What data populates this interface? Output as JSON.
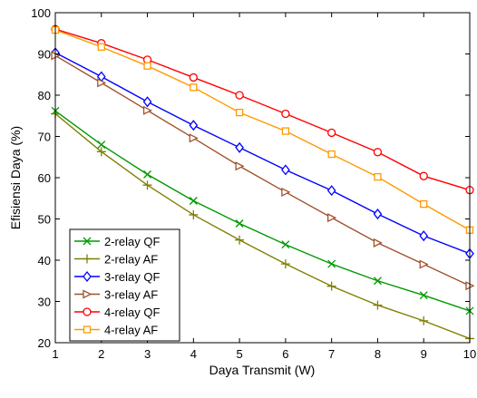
{
  "chart_data": {
    "type": "line",
    "title": "",
    "xlabel": "Daya Transmit (W)",
    "ylabel": "Efisiensi Daya (%)",
    "xlim": [
      1,
      10
    ],
    "ylim": [
      20,
      100
    ],
    "xticks": [
      1,
      2,
      3,
      4,
      5,
      6,
      7,
      8,
      9,
      10
    ],
    "yticks": [
      20,
      30,
      40,
      50,
      60,
      70,
      80,
      90,
      100
    ],
    "grid": false,
    "legend_position": "bottom-left",
    "x": [
      1,
      2,
      3,
      4,
      5,
      6,
      7,
      8,
      9,
      10
    ],
    "series": [
      {
        "name": "2-relay QF",
        "color": "#009900",
        "marker": "x",
        "values": [
          76.2,
          68.0,
          60.8,
          54.4,
          48.9,
          43.8,
          39.1,
          35.0,
          31.5,
          27.7
        ]
      },
      {
        "name": "2-relay AF",
        "color": "#808000",
        "marker": "plus",
        "values": [
          75.5,
          66.3,
          58.2,
          51.0,
          44.9,
          39.1,
          33.7,
          29.1,
          25.3,
          21.0
        ]
      },
      {
        "name": "3-relay QF",
        "color": "#0000ff",
        "marker": "diamond",
        "values": [
          90.3,
          84.5,
          78.4,
          72.7,
          67.3,
          61.9,
          56.9,
          51.2,
          45.9,
          41.6
        ]
      },
      {
        "name": "3-relay AF",
        "color": "#a0522d",
        "marker": "triangle-right",
        "values": [
          89.6,
          83.0,
          76.3,
          69.6,
          62.8,
          56.5,
          50.3,
          44.2,
          39.0,
          33.8
        ]
      },
      {
        "name": "4-relay QF",
        "color": "#ff0000",
        "marker": "circle",
        "values": [
          96.0,
          92.6,
          88.6,
          84.3,
          80.0,
          75.5,
          70.9,
          66.2,
          60.4,
          57.0
        ]
      },
      {
        "name": "4-relay AF",
        "color": "#ff9900",
        "marker": "square",
        "values": [
          95.8,
          91.7,
          87.1,
          81.9,
          75.8,
          71.3,
          65.7,
          60.2,
          53.6,
          47.3
        ]
      }
    ]
  }
}
